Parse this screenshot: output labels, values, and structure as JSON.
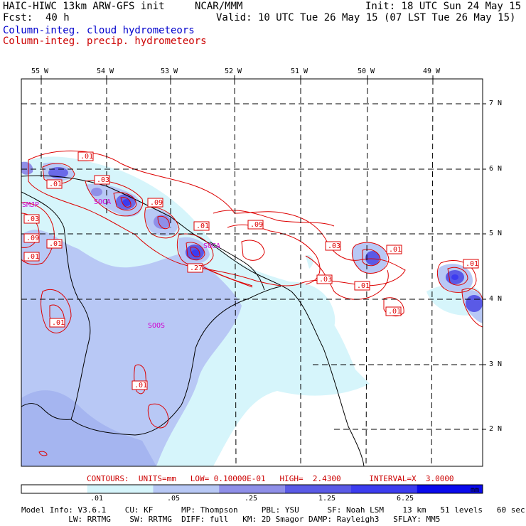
{
  "header": {
    "model": "HAIC-HIWC 13km ARW-GFS init",
    "org": "NCAR/MMM",
    "init": "Init: 18 UTC Sun 24 May 15",
    "fcst_label": "Fcst:",
    "fcst_value": "40 h",
    "valid": "Valid: 10 UTC Tue 26 May 15 (07 LST Tue 26 May 15)",
    "field1": "Column-integ. cloud hydrometeors",
    "field2": "Column-integ. precip. hydrometeors"
  },
  "axes": {
    "lon_labels": [
      "55 W",
      "54 W",
      "53 W",
      "52 W",
      "51 W",
      "50 W",
      "49 W"
    ],
    "lat_labels": [
      "7 N",
      "6 N",
      "5 N",
      "4 N",
      "3 N",
      "2 N"
    ]
  },
  "stations": [
    "SMJP",
    "SOCA",
    "SOOS",
    "SOCA"
  ],
  "contour_labels": [
    ".01",
    ".03",
    ".01",
    ".09",
    ".03",
    ".09",
    ".01",
    ".01",
    ".09",
    ".01",
    ".27",
    ".03",
    ".03",
    ".01",
    ".01",
    ".01",
    ".01",
    ".01",
    ".01"
  ],
  "contours_info": {
    "text": "CONTOURS:  UNITS=mm   LOW= 0.10000E-01   HIGH=  2.4300      INTERVAL=X  3.0000"
  },
  "colorbar": {
    "ticks": [
      ".01",
      ".05",
      ".25",
      "1.25",
      "6.25"
    ],
    "units": "mm",
    "colors": [
      "#ffffff",
      "#d6f5fb",
      "#b8c8f5",
      "#8f8fe8",
      "#5a5ae6",
      "#3c3cef",
      "#0a0aec"
    ]
  },
  "model_info": {
    "line1": "Model Info: V3.6.1    CU: KF      MP: Thompson     PBL: YSU      SF: Noah LSM    13 km   51 levels   60 sec",
    "line2": "          LW: RRTMG    SW: RRTMG  DIFF: full   KM: 2D Smagor DAMP: Rayleigh3   SFLAY: MM5"
  }
}
